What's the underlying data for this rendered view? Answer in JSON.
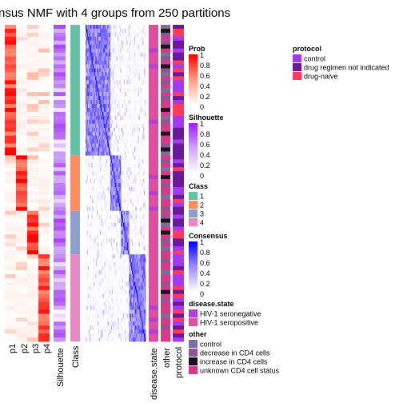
{
  "chart_data": {
    "type": "heatmap",
    "title": "nsus NMF with 4 groups from 250 partitions",
    "n_samples": 80,
    "group_sizes": [
      33,
      14,
      11,
      22
    ],
    "columns": {
      "prob": [
        "p1",
        "p2",
        "p3",
        "p4"
      ],
      "silhouette": "Silhouette",
      "class": "Class",
      "disease_state": "disease.state",
      "other": "other",
      "protocol": "protocol"
    },
    "legends": {
      "prob": {
        "title": "Prob",
        "ticks": [
          "1",
          "0.8",
          "0.6",
          "0.4",
          "0.2",
          "0"
        ],
        "colors": [
          "#ff0000",
          "#ff9e80",
          "#ffffff"
        ]
      },
      "silhouette": {
        "title": "Silhouette",
        "ticks": [
          "1",
          "0.8",
          "0.6",
          "0.4",
          "0.2",
          "0"
        ],
        "colors": [
          "#9e19ff",
          "#cfa5fa",
          "#ffffff"
        ]
      },
      "class": {
        "title": "Class",
        "items": [
          {
            "label": "1",
            "color": "#66c2a5"
          },
          {
            "label": "2",
            "color": "#fc8d62"
          },
          {
            "label": "3",
            "color": "#8da0cb"
          },
          {
            "label": "4",
            "color": "#e78ac3"
          }
        ]
      },
      "consensus": {
        "title": "Consensus",
        "ticks": [
          "1",
          "0.8",
          "0.6",
          "0.4",
          "0.2",
          "0"
        ],
        "colors": [
          "#0000ff",
          "#9e8cfa",
          "#ffffff"
        ]
      },
      "disease_state": {
        "title": "disease.state",
        "items": [
          {
            "label": "HIV-1 seronegative",
            "color": "#b13fd8"
          },
          {
            "label": "HIV-1 seropositive",
            "color": "#de4fa0"
          }
        ]
      },
      "other": {
        "title": "other",
        "items": [
          {
            "label": "control",
            "color": "#7b6f9c"
          },
          {
            "label": "decrease in CD4 cells",
            "color": "#8b5796"
          },
          {
            "label": "increase in CD4 cells",
            "color": "#1f1020"
          },
          {
            "label": "unknown CD4 cell status",
            "color": "#d43a87"
          }
        ]
      },
      "protocol": {
        "title": "protocol",
        "items": [
          {
            "label": "control",
            "color": "#a23af0"
          },
          {
            "label": "drug regimen not indicated",
            "color": "#6a1a98"
          },
          {
            "label": "drug-naive",
            "color": "#ff3a5e"
          }
        ]
      }
    },
    "other_sequence": [
      0,
      2,
      1,
      3,
      1,
      2,
      3,
      0,
      1,
      3,
      2,
      1,
      0,
      3,
      1,
      3,
      0,
      3,
      1,
      3,
      3,
      2,
      3,
      0,
      1,
      3,
      3,
      2,
      3,
      3,
      1,
      2,
      0,
      3,
      1,
      3,
      0,
      3,
      2,
      3,
      1,
      3,
      3,
      0,
      3,
      3,
      1,
      3,
      1,
      2,
      0,
      3,
      2,
      3,
      1,
      3,
      0,
      3,
      3,
      1,
      3,
      3,
      0,
      3,
      3,
      1,
      3,
      2,
      3,
      1,
      3,
      3,
      3,
      0,
      3,
      3,
      1,
      3,
      3,
      3
    ]
  }
}
